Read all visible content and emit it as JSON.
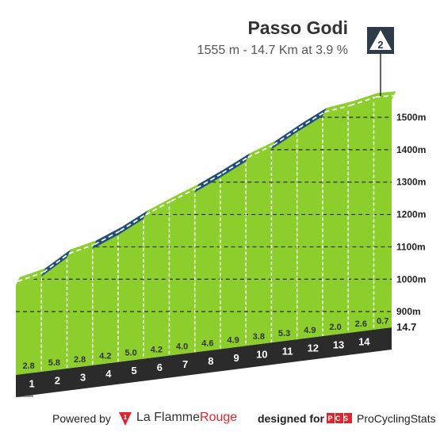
{
  "header": {
    "title": "Passo Godi",
    "subtitle": "1555 m - 14.7 Km at 3.9 %",
    "climb_category": "2"
  },
  "footer": {
    "powered_by": "Powered by",
    "lfr_part1": "La Flamme",
    "lfr_part2": "Rouge",
    "designed_for": "designed for",
    "pcs_logo": "PCS",
    "pcs_name": "ProCyclingStats"
  },
  "colors": {
    "green": "#8ccf2c",
    "steep": "#1f4e79",
    "base": "#2b2b2b",
    "start_grey": "#a09a92",
    "gridline": "#2c2c2c"
  },
  "chart_data": {
    "type": "area",
    "title": "Passo Godi",
    "total_distance_km": 14.7,
    "final_altitude_m": 1555,
    "km_markers": [
      1,
      2,
      3,
      4,
      5,
      6,
      7,
      8,
      9,
      10,
      11,
      12,
      13,
      14
    ],
    "end_label": "14.7",
    "segment_gradients": [
      "2.8",
      "5.8",
      "2.8",
      "4.2",
      "5.0",
      "4.2",
      "4.0",
      "4.6",
      "4.9",
      "3.8",
      "5.3",
      "4.9",
      "2.0",
      "2.6",
      "0.7"
    ],
    "segment_values": [
      2.8,
      5.8,
      2.8,
      4.2,
      5.0,
      4.2,
      4.0,
      4.6,
      4.9,
      3.8,
      5.3,
      4.9,
      2.0,
      2.6,
      0.7
    ],
    "steep_segments": [
      1,
      3,
      4,
      7,
      8,
      10,
      11
    ],
    "y_ticks": [
      {
        "value": 900,
        "label": "900m"
      },
      {
        "value": 1000,
        "label": "1000m"
      },
      {
        "value": 1100,
        "label": "1100m"
      },
      {
        "value": 1200,
        "label": "1200m"
      },
      {
        "value": 1300,
        "label": "1300m"
      },
      {
        "value": 1400,
        "label": "1400m"
      },
      {
        "value": 1500,
        "label": "1500m"
      }
    ],
    "ylim": [
      800,
      1555
    ]
  }
}
